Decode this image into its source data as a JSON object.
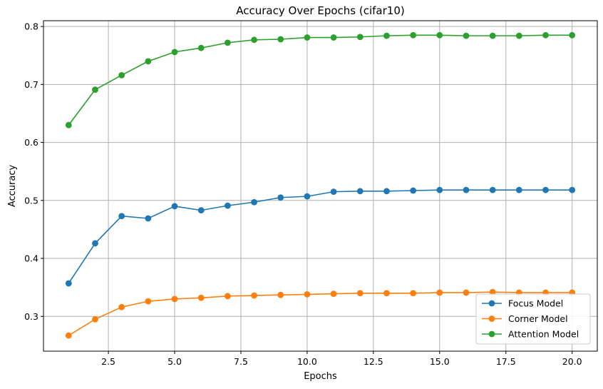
{
  "chart_data": {
    "type": "line",
    "title": "Accuracy Over Epochs (cifar10)",
    "xlabel": "Epochs",
    "ylabel": "Accuracy",
    "xlim": [
      0.05,
      20.95
    ],
    "ylim": [
      0.24,
      0.81
    ],
    "xticks": [
      2.5,
      5.0,
      7.5,
      10.0,
      12.5,
      15.0,
      17.5,
      20.0
    ],
    "xtick_labels": [
      "2.5",
      "5.0",
      "7.5",
      "10.0",
      "12.5",
      "15.0",
      "17.5",
      "20.0"
    ],
    "yticks": [
      0.3,
      0.4,
      0.5,
      0.6,
      0.7,
      0.8
    ],
    "ytick_labels": [
      "0.3",
      "0.4",
      "0.5",
      "0.6",
      "0.7",
      "0.8"
    ],
    "grid": true,
    "legend_position": "lower-right",
    "x": [
      1,
      2,
      3,
      4,
      5,
      6,
      7,
      8,
      9,
      10,
      11,
      12,
      13,
      14,
      15,
      16,
      17,
      18,
      19,
      20
    ],
    "series": [
      {
        "name": "Focus Model",
        "color": "#1f77b4",
        "values": [
          0.357,
          0.426,
          0.473,
          0.469,
          0.49,
          0.483,
          0.491,
          0.497,
          0.505,
          0.507,
          0.515,
          0.516,
          0.516,
          0.517,
          0.518,
          0.518,
          0.518,
          0.518,
          0.518,
          0.518
        ]
      },
      {
        "name": "Corner Model",
        "color": "#ff7f0e",
        "values": [
          0.267,
          0.295,
          0.316,
          0.326,
          0.33,
          0.332,
          0.335,
          0.336,
          0.337,
          0.338,
          0.339,
          0.34,
          0.34,
          0.34,
          0.341,
          0.341,
          0.342,
          0.341,
          0.341,
          0.341
        ]
      },
      {
        "name": "Attention Model",
        "color": "#2ca02c",
        "values": [
          0.63,
          0.691,
          0.716,
          0.74,
          0.756,
          0.763,
          0.772,
          0.777,
          0.778,
          0.781,
          0.781,
          0.782,
          0.784,
          0.785,
          0.785,
          0.784,
          0.784,
          0.784,
          0.785,
          0.785
        ]
      }
    ]
  }
}
